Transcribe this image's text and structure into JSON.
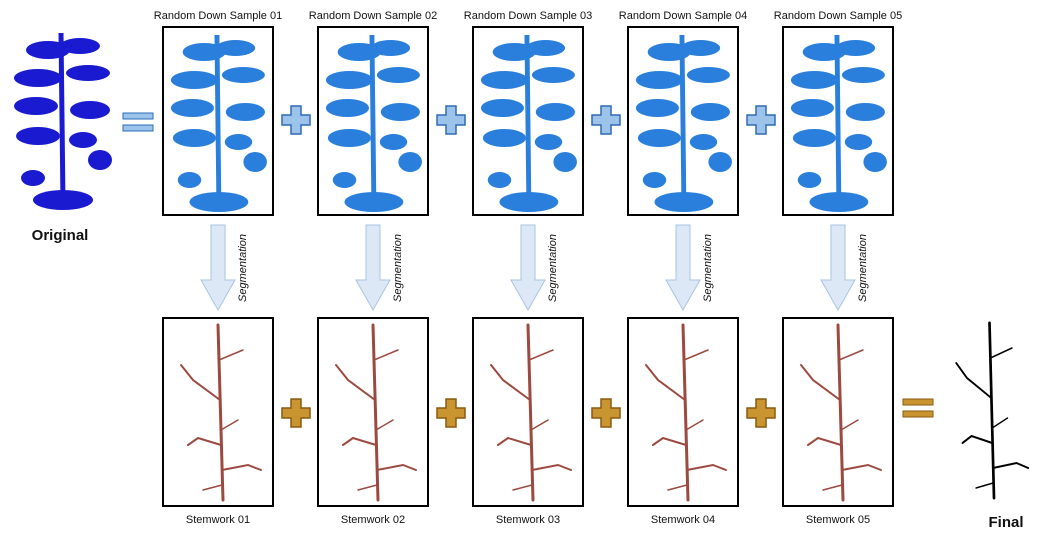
{
  "original_label": "Original",
  "final_label": "Final",
  "samples": [
    {
      "label": "Random Down Sample 01",
      "process": "Segmentation",
      "result": "Stemwork 01"
    },
    {
      "label": "Random Down Sample 02",
      "process": "Segmentation",
      "result": "Stemwork 02"
    },
    {
      "label": "Random Down Sample 03",
      "process": "Segmentation",
      "result": "Stemwork 03"
    },
    {
      "label": "Random Down Sample 04",
      "process": "Segmentation",
      "result": "Stemwork 04"
    },
    {
      "label": "Random Down Sample 05",
      "process": "Segmentation",
      "result": "Stemwork 05"
    }
  ]
}
